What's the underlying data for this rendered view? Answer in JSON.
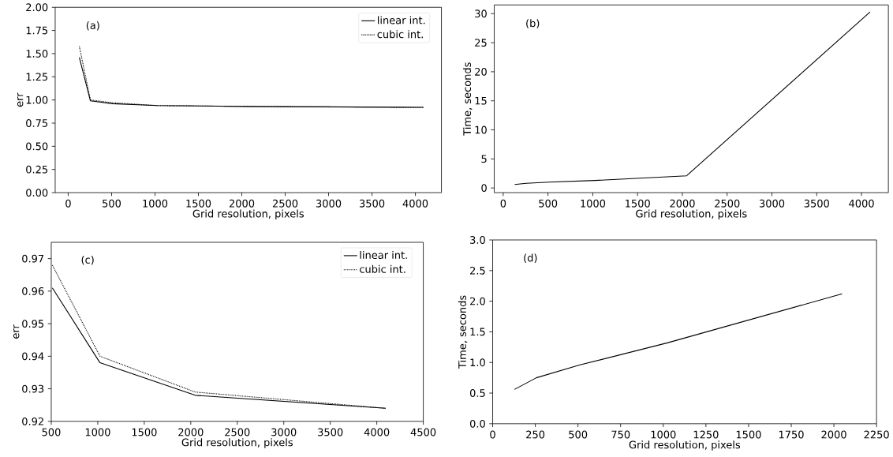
{
  "chart_data": [
    {
      "type": "line",
      "xlabel": "Grid resolution, pixels",
      "ylabel": "err",
      "annotations": [
        "(a)"
      ],
      "legend": "top right",
      "xlim": [
        -150,
        4300
      ],
      "xticks": [
        0,
        500,
        1000,
        1500,
        2000,
        2500,
        3000,
        3500,
        4000
      ],
      "ylim": [
        0,
        2
      ],
      "yticks": [
        {
          "value": 0,
          "label": "0.00"
        },
        0.25,
        {
          "value": 0.5,
          "label": "0.50"
        },
        0.75,
        {
          "value": 1,
          "label": "1.00"
        },
        1.25,
        {
          "value": 1.5,
          "label": "1.50"
        },
        1.75,
        {
          "value": 2,
          "label": "2.00"
        }
      ],
      "series": [
        {
          "name": "linear int.",
          "color": "#000000",
          "line_style": "solid",
          "x": [
            128,
            256,
            512,
            1024,
            2048,
            4096
          ],
          "values": [
            1.46,
            0.99,
            0.96,
            0.94,
            0.93,
            0.92
          ]
        },
        {
          "name": "cubic int.",
          "color": "#000000",
          "line_style": "dotted",
          "x": [
            128,
            256,
            512,
            1024,
            2048,
            4096
          ],
          "values": [
            1.58,
            1.0,
            0.97,
            0.94,
            0.93,
            0.92
          ]
        }
      ]
    },
    {
      "type": "line",
      "xlabel": "Grid resolution, pixels",
      "ylabel": "Time, seconds",
      "annotations": [
        "(b)"
      ],
      "xlim": [
        -100,
        4300
      ],
      "xticks": [
        0,
        500,
        1000,
        1500,
        2000,
        2500,
        3000,
        3500,
        4000
      ],
      "ylim": [
        -0.8,
        31.5
      ],
      "yticks": [
        0,
        5,
        10,
        15,
        20,
        25,
        30
      ],
      "series": [
        {
          "color": "#000000",
          "line_style": "solid",
          "x": [
            128,
            256,
            512,
            1024,
            2048,
            4096
          ],
          "values": [
            0.6,
            0.8,
            1.0,
            1.3,
            2.1,
            30.3
          ]
        }
      ]
    },
    {
      "type": "line",
      "xlabel": "Grid resolution, pixels",
      "ylabel": "err",
      "annotations": [
        "(c)"
      ],
      "legend": "top right",
      "xlim": [
        500,
        4500
      ],
      "xticks": [
        500,
        1000,
        1500,
        2000,
        2500,
        3000,
        3500,
        4000,
        4500
      ],
      "ylim": [
        0.92,
        0.975
      ],
      "yticks": [
        0.92,
        0.93,
        0.94,
        0.95,
        0.96,
        0.97
      ],
      "series": [
        {
          "name": "linear int.",
          "color": "#000000",
          "line_style": "solid",
          "x": [
            512,
            1024,
            2048,
            4096
          ],
          "values": [
            0.961,
            0.938,
            0.928,
            0.924
          ]
        },
        {
          "name": "cubic int.",
          "color": "#000000",
          "line_style": "dotted",
          "x": [
            512,
            1024,
            2048,
            4096
          ],
          "values": [
            0.968,
            0.94,
            0.929,
            0.924
          ]
        }
      ]
    },
    {
      "type": "line",
      "xlabel": "Grid resolution, pixels",
      "ylabel": "Time, seconds",
      "annotations": [
        "(d)"
      ],
      "xlim": [
        0,
        2250
      ],
      "xticks": [
        0,
        250,
        500,
        750,
        1000,
        1250,
        1500,
        1750,
        2000,
        2250
      ],
      "ylim": [
        0,
        3
      ],
      "yticks": [
        {
          "value": 0,
          "label": "0.0"
        },
        0.5,
        {
          "value": 1,
          "label": "1.0"
        },
        1.5,
        {
          "value": 2,
          "label": "2.0"
        },
        2.5,
        {
          "value": 3,
          "label": "3.0"
        }
      ],
      "series": [
        {
          "color": "#000000",
          "line_style": "solid",
          "x": [
            128,
            256,
            512,
            1024,
            2048
          ],
          "values": [
            0.56,
            0.75,
            0.96,
            1.32,
            2.12
          ]
        }
      ]
    }
  ]
}
